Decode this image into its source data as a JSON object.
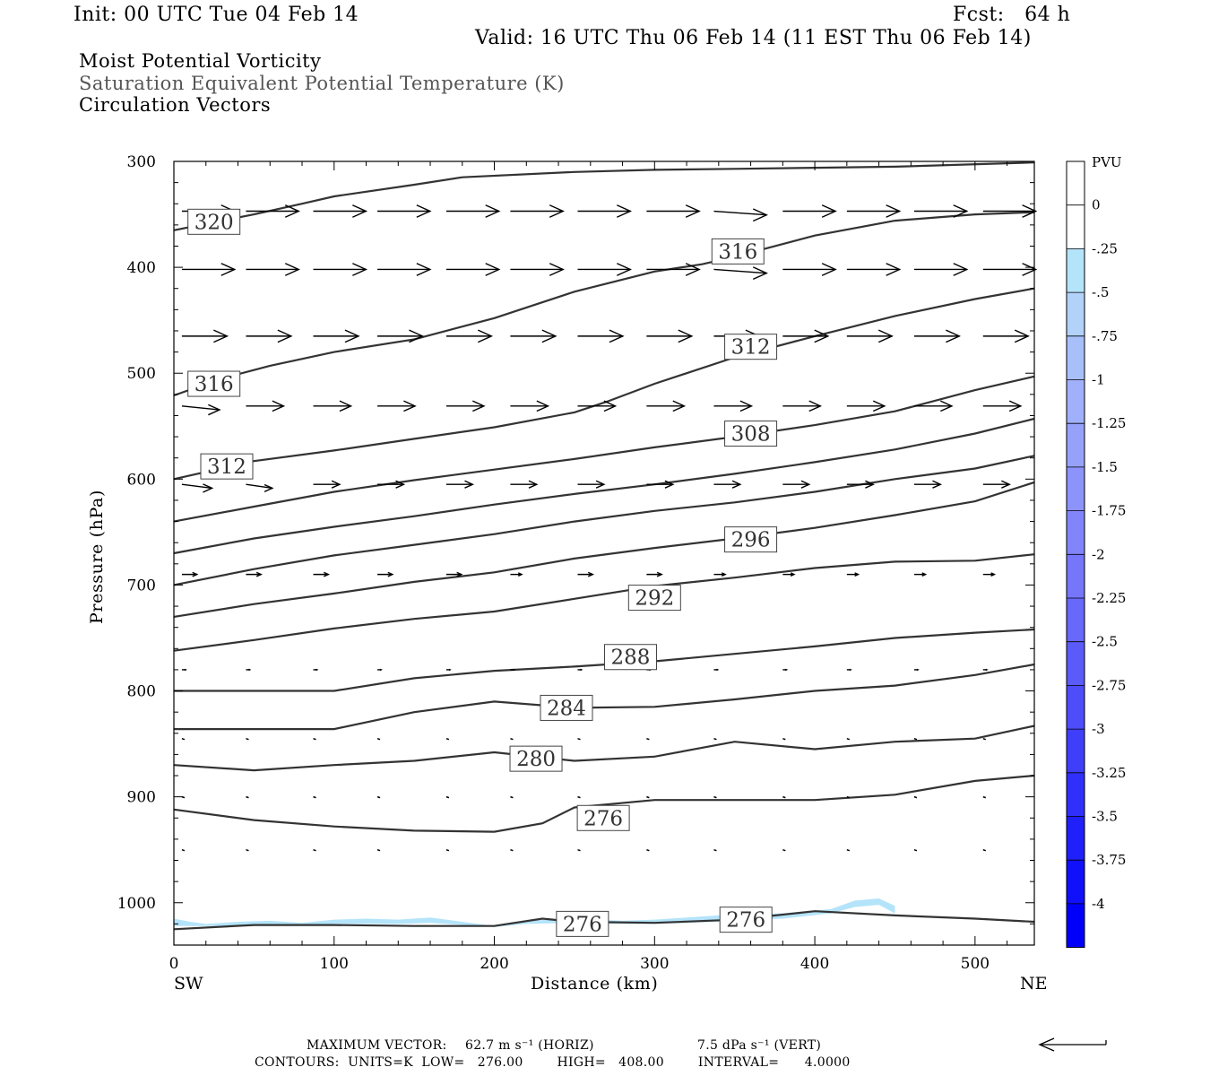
{
  "header": {
    "init": "Init: 00 UTC Tue 04 Feb 14",
    "fcst": "Fcst:   64 h",
    "valid": "Valid: 16 UTC Thu 06 Feb 14 (11 EST Thu 06 Feb 14)"
  },
  "fields": {
    "line1": "Moist Potential Vorticity",
    "line2": "Saturation Equivalent Potential Temperature (K)",
    "line3": "Circulation Vectors"
  },
  "footer": {
    "max_vector_label": "MAXIMUM VECTOR:",
    "max_vector_horiz": "62.7 m s⁻¹ (HORIZ)",
    "max_vector_vert": "7.5 dPa s⁻¹ (VERT)",
    "contours_line": "CONTOURS:  UNITS=K  LOW=   276.00        HIGH=   408.00        INTERVAL=      4.0000"
  },
  "chart_data": {
    "type": "cross-section",
    "xlabel": "Distance (km)",
    "ylabel": "Pressure (hPa)",
    "xlim": [
      0,
      537
    ],
    "ylim": [
      1040,
      300
    ],
    "x_ticks": [
      0,
      100,
      200,
      300,
      400,
      500
    ],
    "y_ticks": [
      300,
      400,
      500,
      600,
      700,
      800,
      900,
      1000
    ],
    "x_end_labels": {
      "left": "SW",
      "right": "NE"
    },
    "colorbar": {
      "title": "PVU",
      "labels": [
        "0",
        "-.25",
        "-.5",
        "-.75",
        "-1",
        "-1.25",
        "-1.5",
        "-1.75",
        "-2",
        "-2.25",
        "-2.5",
        "-2.75",
        "-3",
        "-3.25",
        "-3.5",
        "-3.75",
        "-4"
      ],
      "colors": [
        "#ffffff",
        "#ffffff",
        "#b4e4fa",
        "#b2d2fa",
        "#a8c0fa",
        "#a0b0fa",
        "#96a2fa",
        "#8c93fa",
        "#8284fa",
        "#7576fa",
        "#6868fa",
        "#5b5bfa",
        "#4d4dfa",
        "#3f3ffa",
        "#3030fa",
        "#2020fa",
        "#1010fa",
        "#0000fa"
      ]
    },
    "contours": [
      {
        "value": 320,
        "label": "320",
        "x": [
          0,
          50,
          80,
          100,
          150,
          180,
          250,
          300,
          350,
          400,
          450,
          537
        ],
        "p": [
          365,
          350,
          340,
          333,
          322,
          315,
          310,
          308,
          307,
          306,
          305,
          301
        ]
      },
      {
        "value": 316,
        "label": "316",
        "x": [
          0,
          30,
          60,
          100,
          150,
          200,
          250,
          300,
          330,
          350,
          400,
          450,
          500,
          537
        ],
        "p": [
          521,
          505,
          493,
          480,
          468,
          448,
          423,
          404,
          397,
          390,
          370,
          356,
          350,
          348
        ]
      },
      {
        "value": 312,
        "label": "312",
        "x": [
          0,
          50,
          100,
          150,
          200,
          250,
          270,
          300,
          350,
          400,
          450,
          500,
          537
        ],
        "p": [
          600,
          583,
          573,
          562,
          551,
          537,
          527,
          510,
          485,
          465,
          446,
          430,
          420
        ]
      },
      {
        "value": 308,
        "label": "308",
        "x": [
          0,
          50,
          100,
          150,
          200,
          250,
          300,
          350,
          400,
          450,
          500,
          537
        ],
        "p": [
          640,
          626,
          612,
          601,
          591,
          581,
          570,
          560,
          549,
          536,
          516,
          503
        ]
      },
      {
        "value": 304,
        "label": "",
        "x": [
          0,
          50,
          100,
          150,
          200,
          250,
          300,
          350,
          400,
          450,
          500,
          537
        ],
        "p": [
          670,
          656,
          645,
          635,
          624,
          614,
          605,
          595,
          584,
          572,
          557,
          543
        ]
      },
      {
        "value": 300,
        "label": "",
        "x": [
          0,
          50,
          100,
          150,
          200,
          250,
          300,
          350,
          400,
          450,
          500,
          537
        ],
        "p": [
          700,
          685,
          672,
          662,
          652,
          640,
          630,
          622,
          612,
          600,
          590,
          578
        ]
      },
      {
        "value": 296,
        "label": "296",
        "x": [
          0,
          50,
          100,
          150,
          200,
          250,
          300,
          350,
          400,
          450,
          500,
          537
        ],
        "p": [
          730,
          718,
          708,
          697,
          688,
          675,
          665,
          656,
          646,
          634,
          621,
          603
        ]
      },
      {
        "value": 292,
        "label": "292",
        "x": [
          0,
          50,
          100,
          150,
          200,
          250,
          300,
          350,
          400,
          450,
          500,
          537
        ],
        "p": [
          762,
          752,
          741,
          732,
          725,
          713,
          701,
          693,
          684,
          678,
          677,
          671
        ]
      },
      {
        "value": 288,
        "label": "288",
        "x": [
          0,
          50,
          100,
          150,
          200,
          250,
          300,
          350,
          400,
          450,
          500,
          537
        ],
        "p": [
          800,
          800,
          800,
          788,
          781,
          777,
          772,
          765,
          758,
          750,
          745,
          742
        ]
      },
      {
        "value": 284,
        "label": "284",
        "x": [
          0,
          50,
          100,
          150,
          200,
          250,
          300,
          350,
          400,
          450,
          500,
          537
        ],
        "p": [
          836,
          836,
          836,
          820,
          810,
          816,
          815,
          808,
          800,
          795,
          785,
          775
        ]
      },
      {
        "value": 280,
        "label": "280",
        "x": [
          0,
          50,
          100,
          150,
          200,
          250,
          300,
          350,
          400,
          450,
          500,
          537
        ],
        "p": [
          870,
          875,
          870,
          866,
          858,
          866,
          862,
          848,
          855,
          848,
          845,
          833
        ]
      },
      {
        "value": 276,
        "label": "276",
        "x": [
          0,
          50,
          100,
          150,
          200,
          230,
          250,
          300,
          350,
          400,
          450,
          500,
          537
        ],
        "p": [
          912,
          922,
          928,
          932,
          933,
          925,
          910,
          903,
          903,
          903,
          898,
          885,
          880
        ]
      },
      {
        "value": 276,
        "label": "276",
        "x": [
          0,
          50,
          100,
          150,
          200,
          230,
          250,
          300,
          350,
          400,
          450,
          500,
          537
        ],
        "p": [
          1025,
          1021,
          1021,
          1022,
          1022,
          1015,
          1018,
          1019,
          1016,
          1008,
          1012,
          1015,
          1018
        ]
      }
    ],
    "vectors": {
      "x": [
        5,
        45,
        87,
        127,
        170,
        210,
        252,
        295,
        337,
        380,
        420,
        462,
        505
      ],
      "rows": [
        {
          "p": 347,
          "dx": [
            14,
            14,
            14,
            14,
            14,
            14,
            14,
            14,
            14,
            14,
            14,
            14,
            14
          ],
          "dy": [
            0,
            0,
            0,
            0,
            0,
            0,
            0,
            0,
            1,
            0,
            0,
            0,
            0
          ]
        },
        {
          "p": 402,
          "dx": [
            14,
            14,
            14,
            14,
            14,
            14,
            14,
            14,
            14,
            14,
            14,
            14,
            14
          ],
          "dy": [
            0,
            0,
            0,
            0,
            0,
            0,
            0,
            0,
            1,
            0,
            0,
            0,
            0
          ]
        },
        {
          "p": 465,
          "dx": [
            12,
            12,
            12,
            12,
            12,
            12,
            12,
            12,
            12,
            12,
            12,
            12,
            12
          ],
          "dy": [
            0,
            0,
            0,
            0,
            0,
            0,
            0,
            0,
            0,
            0,
            0,
            0,
            0
          ]
        },
        {
          "p": 531,
          "dx": [
            10,
            10,
            10,
            10,
            10,
            10,
            10,
            10,
            10,
            10,
            10,
            10,
            10
          ],
          "dy": [
            1,
            0,
            0,
            0,
            0,
            0,
            0,
            0,
            0,
            0,
            0,
            0,
            0
          ]
        },
        {
          "p": 605,
          "dx": [
            8,
            7,
            7,
            7,
            7,
            7,
            7,
            7,
            7,
            7,
            7,
            7,
            7
          ],
          "dy": [
            1,
            1,
            0,
            0,
            0,
            0,
            0,
            0,
            0,
            0,
            0,
            0,
            0
          ]
        },
        {
          "p": 690,
          "dx": [
            4,
            4,
            4,
            4,
            4,
            3,
            4,
            4,
            3,
            3,
            3,
            3,
            3
          ],
          "dy": [
            0,
            0,
            0,
            0,
            0,
            0,
            0,
            0,
            0,
            0,
            0,
            0,
            0
          ]
        },
        {
          "p": 780,
          "dx": [
            1,
            1,
            1,
            1,
            1,
            1,
            1,
            1,
            1,
            1,
            1,
            1,
            1
          ],
          "dy": [
            0,
            0,
            0,
            0,
            0,
            0,
            0,
            0,
            0,
            0,
            0,
            0,
            0
          ]
        },
        {
          "p": 845,
          "dx": [
            0,
            0,
            0,
            0,
            0,
            0,
            0,
            0,
            0,
            0,
            0,
            0,
            0
          ],
          "dy": [
            0,
            0,
            0,
            0,
            0,
            0,
            0,
            0,
            0,
            0,
            0,
            0,
            0
          ]
        },
        {
          "p": 900,
          "dx": [
            0,
            0,
            0,
            0,
            0,
            0,
            0,
            0,
            0,
            0,
            0,
            0,
            0
          ],
          "dy": [
            0,
            0,
            0,
            0,
            0,
            0,
            0,
            0,
            0,
            0,
            0,
            0,
            0
          ]
        },
        {
          "p": 950,
          "dx": [
            0,
            0,
            0,
            0,
            0,
            0,
            0,
            0,
            0,
            0,
            0,
            0,
            0
          ],
          "dy": [
            0,
            0,
            0,
            0,
            0,
            0,
            0,
            0,
            0,
            0,
            0,
            0,
            0
          ]
        }
      ]
    },
    "shading": [
      {
        "value": -0.25,
        "x": [
          0,
          10,
          20,
          40,
          60,
          80,
          100,
          120,
          140,
          160,
          170,
          200,
          220,
          250,
          280,
          300,
          340,
          380,
          410,
          425,
          440,
          450
        ],
        "p_top": [
          1015,
          1018,
          1020,
          1018,
          1017,
          1019,
          1016,
          1015,
          1016,
          1014,
          1016,
          1022,
          1017,
          1015,
          1017,
          1016,
          1012,
          1010,
          1006,
          998,
          996,
          1003
        ],
        "p_bot": [
          1022,
          1022,
          1022,
          1022,
          1021,
          1021,
          1020,
          1020,
          1020,
          1019,
          1020,
          1023,
          1020,
          1019,
          1020,
          1020,
          1018,
          1015,
          1010,
          1004,
          1002,
          1010
        ]
      }
    ]
  }
}
